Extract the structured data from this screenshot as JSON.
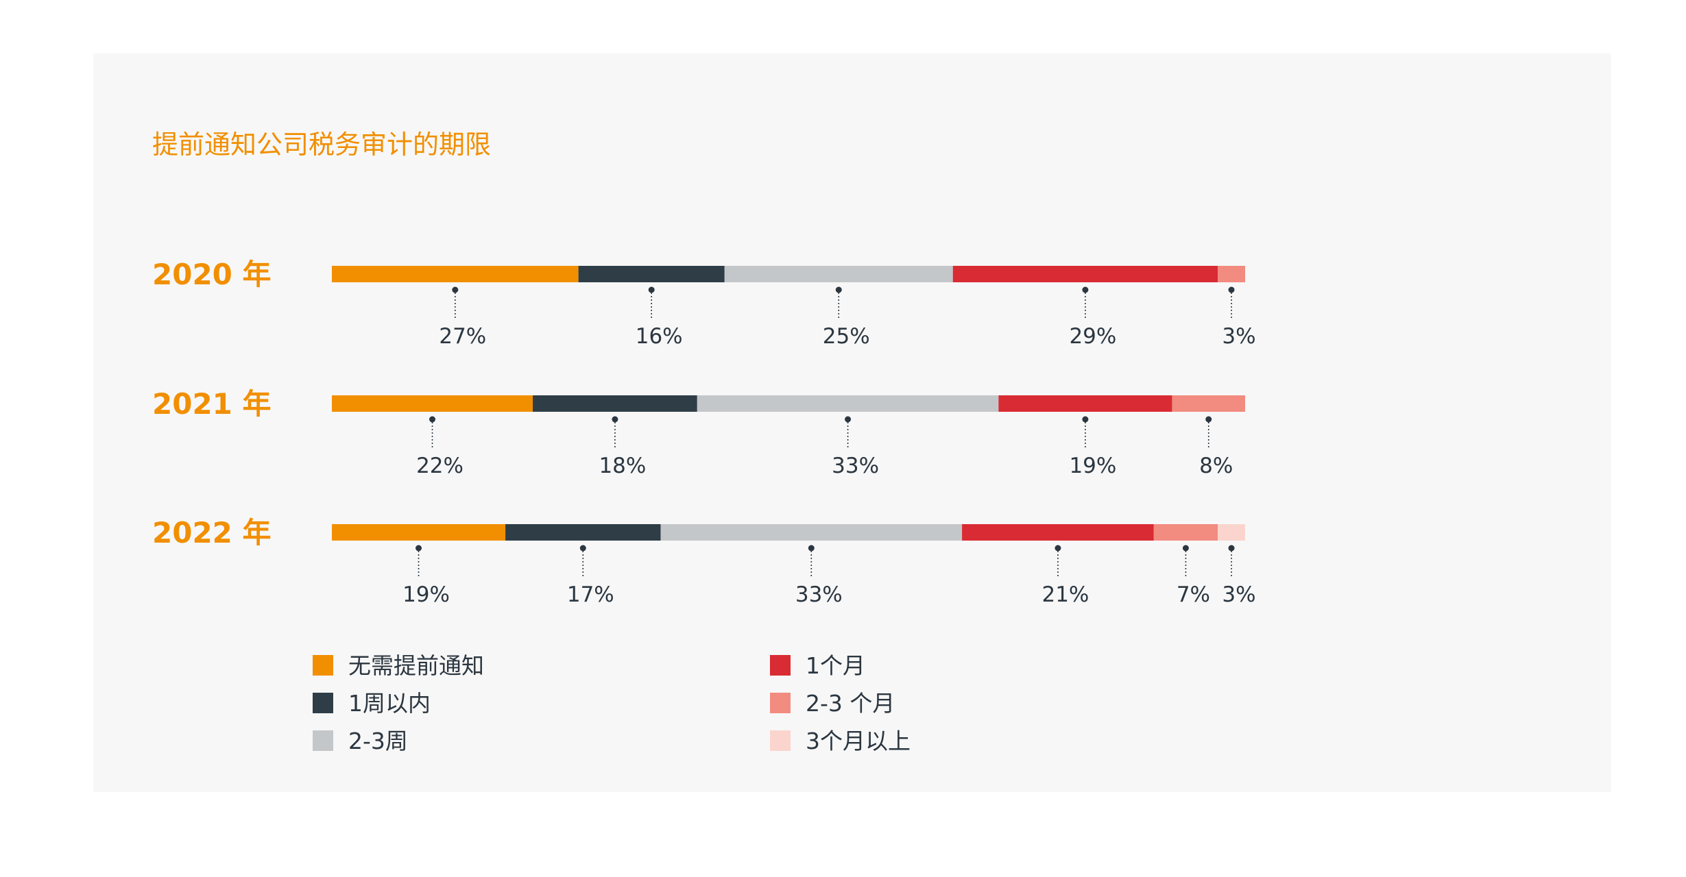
{
  "chart_data": {
    "type": "bar",
    "orientation": "horizontal",
    "stacked": true,
    "normalized": true,
    "title": "提前通知公司税务审计的期限",
    "categories": [
      "2020 年",
      "2021 年",
      "2022 年"
    ],
    "series": [
      {
        "name": "无需提前通知",
        "color": "#f18f01",
        "values": [
          27,
          22,
          19
        ],
        "labels": [
          "27%",
          "22%",
          "19%"
        ]
      },
      {
        "name": "1周以内",
        "color": "#2f3d47",
        "values": [
          16,
          18,
          17
        ],
        "labels": [
          "16%",
          "18%",
          "17%"
        ]
      },
      {
        "name": "2-3周",
        "color": "#c4c7c9",
        "values": [
          25,
          33,
          33
        ],
        "labels": [
          "25%",
          "33%",
          "33%"
        ]
      },
      {
        "name": "1个月",
        "color": "#d92b33",
        "values": [
          29,
          19,
          21
        ],
        "labels": [
          "29%",
          "19%",
          "21%"
        ]
      },
      {
        "name": "2-3 个月",
        "color": "#f28b80",
        "values": [
          3,
          8,
          7
        ],
        "labels": [
          "3%",
          "8%",
          "7%"
        ]
      },
      {
        "name": "3个月以上",
        "color": "#fbd5cd",
        "values": [
          0,
          0,
          3
        ],
        "labels": [
          "",
          "",
          "3%"
        ]
      }
    ],
    "xlim": [
      0,
      100
    ],
    "grid": false,
    "legend_position": "bottom",
    "legend_columns": 2
  }
}
